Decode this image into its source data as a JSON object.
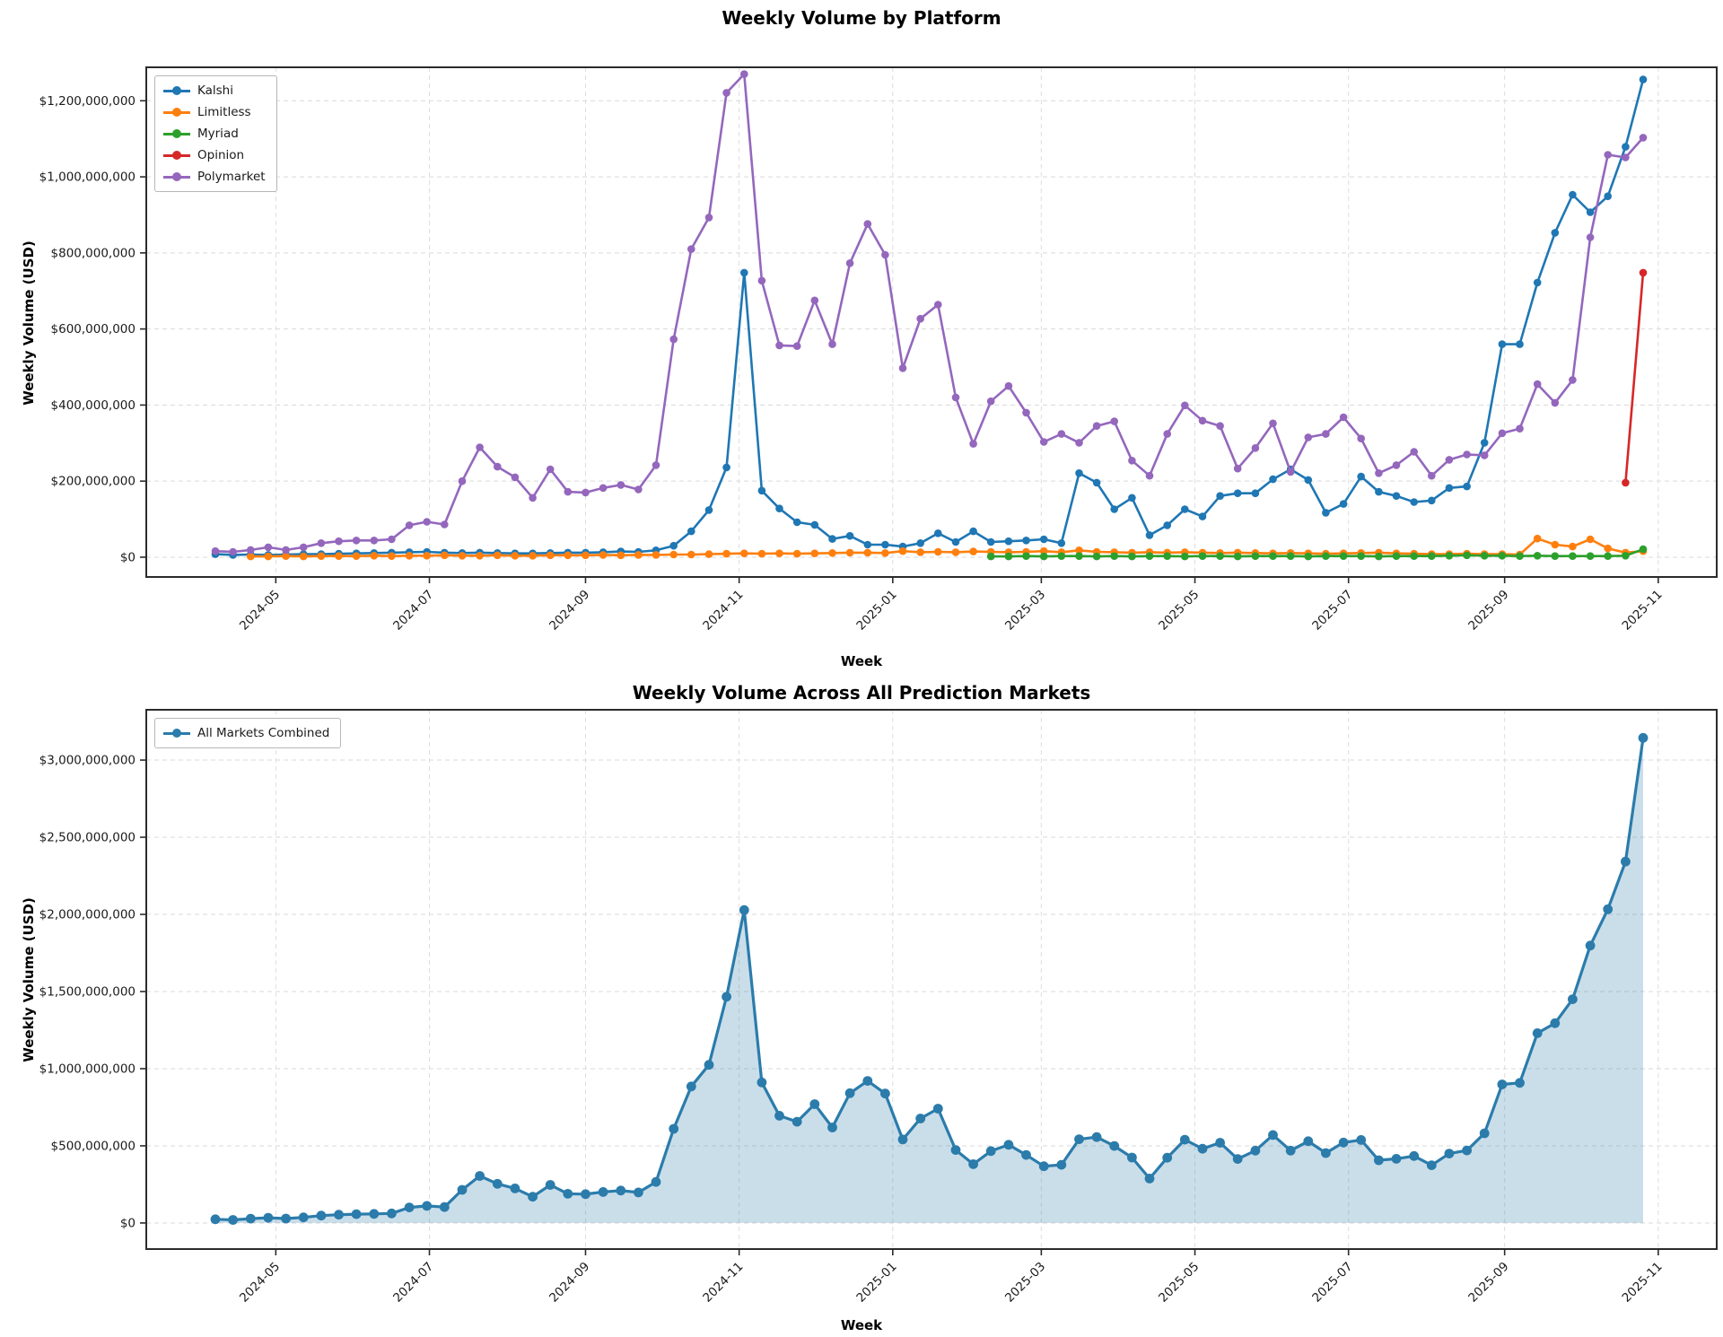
{
  "figure": {
    "background": "#ffffff",
    "note_units": "series values are weekly volume in millions of USD",
    "week_label": "Week"
  },
  "chart_data": [
    {
      "type": "line",
      "title": "Weekly Volume by Platform",
      "xlabel": "Week",
      "ylabel": "Weekly Volume (USD)",
      "legend_position": "upper-left",
      "grid": true,
      "units": "USD millions",
      "ylim_millions": [
        -52,
        1288
      ],
      "y_ticks": [
        {
          "label": "$0",
          "value": 0
        },
        {
          "label": "$200,000,000",
          "value": 200
        },
        {
          "label": "$400,000,000",
          "value": 400
        },
        {
          "label": "$600,000,000",
          "value": 600
        },
        {
          "label": "$800,000,000",
          "value": 800
        },
        {
          "label": "$1,000,000,000",
          "value": 1000
        },
        {
          "label": "$1,200,000,000",
          "value": 1200
        }
      ],
      "x_ticks": [
        {
          "label": "2024-05",
          "date": "2024-05-01"
        },
        {
          "label": "2024-07",
          "date": "2024-07-01"
        },
        {
          "label": "2024-09",
          "date": "2024-09-01"
        },
        {
          "label": "2024-11",
          "date": "2024-11-01"
        },
        {
          "label": "2025-01",
          "date": "2025-01-01"
        },
        {
          "label": "2025-03",
          "date": "2025-03-01"
        },
        {
          "label": "2025-05",
          "date": "2025-05-01"
        },
        {
          "label": "2025-07",
          "date": "2025-07-01"
        },
        {
          "label": "2025-09",
          "date": "2025-09-01"
        },
        {
          "label": "2025-11",
          "date": "2025-11-01"
        }
      ],
      "x_weeks": [
        "2024-04-07",
        "2024-04-14",
        "2024-04-21",
        "2024-04-28",
        "2024-05-05",
        "2024-05-12",
        "2024-05-19",
        "2024-05-26",
        "2024-06-02",
        "2024-06-09",
        "2024-06-16",
        "2024-06-23",
        "2024-06-30",
        "2024-07-07",
        "2024-07-14",
        "2024-07-21",
        "2024-07-28",
        "2024-08-04",
        "2024-08-11",
        "2024-08-18",
        "2024-08-25",
        "2024-09-01",
        "2024-09-08",
        "2024-09-15",
        "2024-09-22",
        "2024-09-29",
        "2024-10-06",
        "2024-10-13",
        "2024-10-20",
        "2024-10-27",
        "2024-11-03",
        "2024-11-10",
        "2024-11-17",
        "2024-11-24",
        "2024-12-01",
        "2024-12-08",
        "2024-12-15",
        "2024-12-22",
        "2024-12-29",
        "2025-01-05",
        "2025-01-12",
        "2025-01-19",
        "2025-01-26",
        "2025-02-02",
        "2025-02-09",
        "2025-02-16",
        "2025-02-23",
        "2025-03-02",
        "2025-03-09",
        "2025-03-16",
        "2025-03-23",
        "2025-03-30",
        "2025-04-06",
        "2025-04-13",
        "2025-04-20",
        "2025-04-27",
        "2025-05-04",
        "2025-05-11",
        "2025-05-18",
        "2025-05-25",
        "2025-06-01",
        "2025-06-08",
        "2025-06-15",
        "2025-06-22",
        "2025-06-29",
        "2025-07-06",
        "2025-07-13",
        "2025-07-20",
        "2025-07-27",
        "2025-08-03",
        "2025-08-10",
        "2025-08-17",
        "2025-08-24",
        "2025-08-31",
        "2025-09-07",
        "2025-09-14",
        "2025-09-21",
        "2025-09-28",
        "2025-10-05",
        "2025-10-12",
        "2025-10-19",
        "2025-10-26"
      ],
      "series": [
        {
          "name": "Kalshi",
          "color": "#1f77b4",
          "values": [
            8,
            6,
            7,
            6,
            7,
            8,
            8,
            9,
            10,
            11,
            12,
            13,
            14,
            12,
            11,
            12,
            11,
            10,
            10,
            11,
            12,
            12,
            13,
            15,
            14,
            18,
            30,
            68,
            124,
            236,
            748,
            175,
            128,
            92,
            85,
            48,
            56,
            33,
            33,
            28,
            37,
            63,
            40,
            68,
            40,
            42,
            44,
            47,
            37,
            221,
            196,
            126,
            156,
            58,
            84,
            126,
            107,
            161,
            168,
            168,
            205,
            231,
            203,
            117,
            140,
            212,
            172,
            161,
            145,
            149,
            182,
            186,
            301,
            560,
            560,
            722,
            853,
            953,
            907,
            949,
            1079,
            1256
          ]
        },
        {
          "name": "Limitless",
          "color": "#ff7f0e",
          "values": [
            null,
            null,
            2,
            2,
            3,
            2,
            3,
            3,
            3,
            4,
            3,
            4,
            4,
            5,
            4,
            4,
            5,
            4,
            4,
            5,
            5,
            5,
            6,
            5,
            6,
            6,
            7,
            7,
            8,
            9,
            10,
            9,
            10,
            9,
            10,
            11,
            12,
            12,
            11,
            16,
            13,
            14,
            13,
            15,
            14,
            13,
            14,
            16,
            13,
            18,
            14,
            13,
            12,
            13,
            12,
            13,
            12,
            11,
            12,
            11,
            10,
            11,
            10,
            9,
            10,
            11,
            12,
            10,
            9,
            8,
            8,
            9,
            8,
            8,
            7,
            49,
            33,
            28,
            47,
            23,
            12,
            16
          ]
        },
        {
          "name": "Myriad",
          "color": "#2ca02c",
          "values": [
            null,
            null,
            null,
            null,
            null,
            null,
            null,
            null,
            null,
            null,
            null,
            null,
            null,
            null,
            null,
            null,
            null,
            null,
            null,
            null,
            null,
            null,
            null,
            null,
            null,
            null,
            null,
            null,
            null,
            null,
            null,
            null,
            null,
            null,
            null,
            null,
            null,
            null,
            null,
            null,
            null,
            null,
            null,
            null,
            2,
            2,
            3,
            2,
            3,
            3,
            2,
            3,
            2,
            3,
            3,
            2,
            3,
            3,
            2,
            3,
            3,
            3,
            2,
            3,
            3,
            3,
            2,
            3,
            3,
            3,
            4,
            5,
            4,
            4,
            3,
            4,
            3,
            3,
            3,
            3,
            4,
            21
          ]
        },
        {
          "name": "Opinion",
          "color": "#d62728",
          "values": [
            null,
            null,
            null,
            null,
            null,
            null,
            null,
            null,
            null,
            null,
            null,
            null,
            null,
            null,
            null,
            null,
            null,
            null,
            null,
            null,
            null,
            null,
            null,
            null,
            null,
            null,
            null,
            null,
            null,
            null,
            null,
            null,
            null,
            null,
            null,
            null,
            null,
            null,
            null,
            null,
            null,
            null,
            null,
            null,
            null,
            null,
            null,
            null,
            null,
            null,
            null,
            null,
            null,
            null,
            null,
            null,
            null,
            null,
            null,
            null,
            null,
            null,
            null,
            null,
            null,
            null,
            null,
            null,
            null,
            null,
            null,
            null,
            null,
            null,
            null,
            null,
            null,
            null,
            null,
            null,
            196,
            748
          ]
        },
        {
          "name": "Polymarket",
          "color": "#9467bd",
          "values": [
            16,
            14,
            19,
            26,
            19,
            26,
            37,
            42,
            44,
            44,
            47,
            84,
            93,
            86,
            200,
            289,
            238,
            210,
            156,
            231,
            172,
            170,
            182,
            190,
            178,
            242,
            573,
            810,
            893,
            1221,
            1270,
            727,
            557,
            555,
            675,
            560,
            773,
            876,
            795,
            497,
            627,
            664,
            420,
            298,
            410,
            450,
            380,
            303,
            324,
            301,
            345,
            357,
            254,
            214,
            324,
            399,
            359,
            345,
            233,
            287,
            352,
            224,
            315,
            324,
            368,
            312,
            221,
            242,
            277,
            214,
            256,
            270,
            268,
            326,
            338,
            455,
            406,
            466,
            841,
            1058,
            1051,
            1103
          ]
        }
      ]
    },
    {
      "type": "area",
      "title": "Weekly Volume Across All Prediction Markets",
      "xlabel": "Week",
      "ylabel": "Weekly Volume (USD)",
      "legend_position": "upper-left",
      "grid": true,
      "units": "USD millions",
      "ylim_millions": [
        -169,
        3326
      ],
      "y_ticks": [
        {
          "label": "$0",
          "value": 0
        },
        {
          "label": "$500,000,000",
          "value": 500
        },
        {
          "label": "$1,000,000,000",
          "value": 1000
        },
        {
          "label": "$1,500,000,000",
          "value": 1500
        },
        {
          "label": "$2,000,000,000",
          "value": 2000
        },
        {
          "label": "$2,500,000,000",
          "value": 2500
        },
        {
          "label": "$3,000,000,000",
          "value": 3000
        }
      ],
      "x_ticks": [
        {
          "label": "2024-05",
          "date": "2024-05-01"
        },
        {
          "label": "2024-07",
          "date": "2024-07-01"
        },
        {
          "label": "2024-09",
          "date": "2024-09-01"
        },
        {
          "label": "2024-11",
          "date": "2024-11-01"
        },
        {
          "label": "2025-01",
          "date": "2025-01-01"
        },
        {
          "label": "2025-03",
          "date": "2025-03-01"
        },
        {
          "label": "2025-05",
          "date": "2025-05-01"
        },
        {
          "label": "2025-07",
          "date": "2025-07-01"
        },
        {
          "label": "2025-09",
          "date": "2025-09-01"
        },
        {
          "label": "2025-11",
          "date": "2025-11-01"
        }
      ],
      "x_weeks": [
        "2024-04-07",
        "2024-04-14",
        "2024-04-21",
        "2024-04-28",
        "2024-05-05",
        "2024-05-12",
        "2024-05-19",
        "2024-05-26",
        "2024-06-02",
        "2024-06-09",
        "2024-06-16",
        "2024-06-23",
        "2024-06-30",
        "2024-07-07",
        "2024-07-14",
        "2024-07-21",
        "2024-07-28",
        "2024-08-04",
        "2024-08-11",
        "2024-08-18",
        "2024-08-25",
        "2024-09-01",
        "2024-09-08",
        "2024-09-15",
        "2024-09-22",
        "2024-09-29",
        "2024-10-06",
        "2024-10-13",
        "2024-10-20",
        "2024-10-27",
        "2024-11-03",
        "2024-11-10",
        "2024-11-17",
        "2024-11-24",
        "2024-12-01",
        "2024-12-08",
        "2024-12-15",
        "2024-12-22",
        "2024-12-29",
        "2025-01-05",
        "2025-01-12",
        "2025-01-19",
        "2025-01-26",
        "2025-02-02",
        "2025-02-09",
        "2025-02-16",
        "2025-02-23",
        "2025-03-02",
        "2025-03-09",
        "2025-03-16",
        "2025-03-23",
        "2025-03-30",
        "2025-04-06",
        "2025-04-13",
        "2025-04-20",
        "2025-04-27",
        "2025-05-04",
        "2025-05-11",
        "2025-05-18",
        "2025-05-25",
        "2025-06-01",
        "2025-06-08",
        "2025-06-15",
        "2025-06-22",
        "2025-06-29",
        "2025-07-06",
        "2025-07-13",
        "2025-07-20",
        "2025-07-27",
        "2025-08-03",
        "2025-08-10",
        "2025-08-17",
        "2025-08-24",
        "2025-08-31",
        "2025-09-07",
        "2025-09-14",
        "2025-09-21",
        "2025-09-28",
        "2025-10-05",
        "2025-10-12",
        "2025-10-19",
        "2025-10-26"
      ],
      "series": [
        {
          "name": "All Markets Combined",
          "color": "#2b7cab",
          "fill": "rgba(43,124,171,0.25)",
          "values": [
            24,
            20,
            28,
            34,
            29,
            36,
            48,
            54,
            57,
            59,
            62,
            101,
            111,
            103,
            215,
            305,
            254,
            224,
            170,
            247,
            189,
            187,
            201,
            210,
            198,
            266,
            610,
            885,
            1025,
            1466,
            2028,
            911,
            695,
            656,
            770,
            619,
            841,
            921,
            839,
            541,
            677,
            741,
            473,
            381,
            466,
            507,
            441,
            368,
            377,
            543,
            557,
            499,
            424,
            288,
            423,
            540,
            481,
            520,
            415,
            469,
            570,
            469,
            530,
            453,
            521,
            538,
            407,
            416,
            434,
            374,
            450,
            470,
            581,
            898,
            908,
            1230,
            1295,
            1450,
            1798,
            2033,
            2342,
            3144
          ]
        }
      ]
    }
  ]
}
